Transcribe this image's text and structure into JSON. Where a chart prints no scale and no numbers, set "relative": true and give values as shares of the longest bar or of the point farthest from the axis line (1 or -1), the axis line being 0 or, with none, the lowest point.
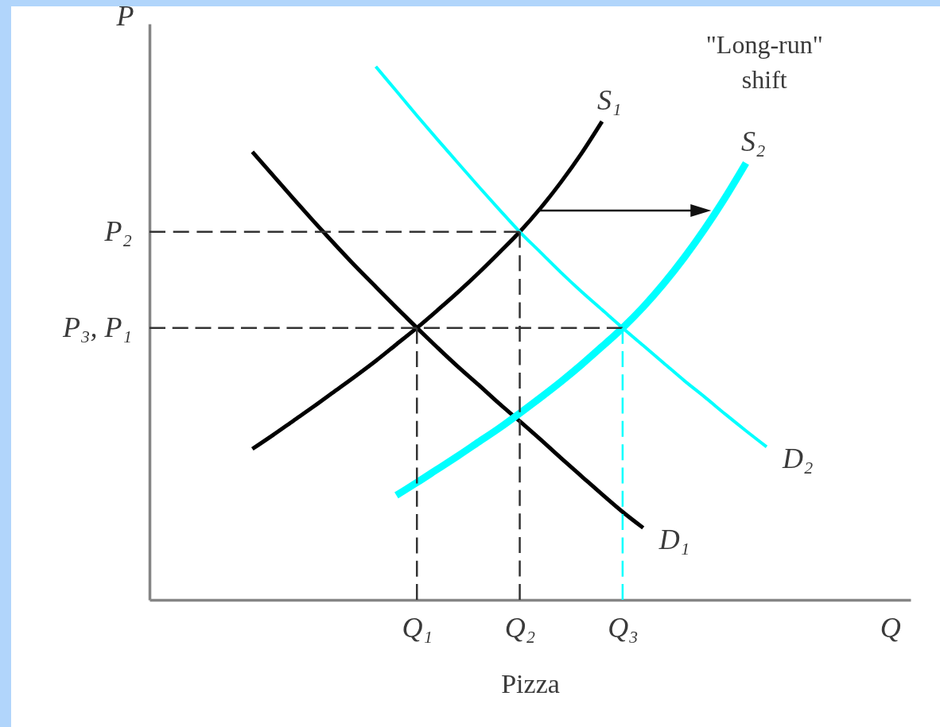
{
  "chart_data": {
    "type": "line",
    "relative": true,
    "xlabel": "Pizza",
    "ylabel": "P",
    "line_style": "solid",
    "categories": [
      null,
      null,
      null,
      null,
      null,
      null,
      null,
      null,
      null,
      null,
      null,
      null,
      null,
      "Q₁",
      null,
      null,
      null,
      null,
      "Q₂",
      null,
      null,
      null,
      null,
      "Q₃",
      null,
      null,
      null,
      null,
      null,
      null,
      null,
      null,
      null,
      null,
      null,
      null,
      "Q",
      null
    ],
    "annotations": [
      "\"Long-run\" shift"
    ],
    "series": [
      {
        "name": "S₁",
        "color": "#000000",
        "values": [
          null,
          null,
          null,
          null,
          null,
          0.283,
          0.309,
          0.336,
          0.363,
          0.391,
          0.419,
          0.448,
          0.479,
          0.51,
          0.543,
          0.577,
          0.613,
          0.651,
          0.69,
          0.734,
          0.783,
          0.837,
          0.897,
          null,
          null,
          null,
          null,
          null,
          null,
          null,
          null,
          null,
          null,
          null,
          null,
          null,
          null,
          null
        ]
      },
      {
        "name": "D₁",
        "color": "#000000",
        "values": [
          null,
          null,
          null,
          null,
          null,
          0.84,
          0.796,
          0.752,
          0.709,
          0.667,
          0.626,
          0.587,
          0.548,
          0.51,
          0.473,
          0.437,
          0.403,
          0.368,
          0.335,
          0.301,
          0.266,
          0.232,
          0.198,
          0.165,
          0.135,
          null,
          null,
          null,
          null,
          null,
          null,
          null,
          null,
          null,
          null,
          null,
          null,
          null
        ]
      },
      {
        "name": "D₂",
        "color": "#00ffff",
        "values": [
          null,
          null,
          null,
          null,
          null,
          null,
          null,
          null,
          null,
          null,
          null,
          1,
          0.954,
          0.908,
          0.863,
          0.819,
          0.775,
          0.732,
          0.69,
          0.652,
          0.614,
          0.578,
          0.544,
          0.51,
          0.477,
          0.444,
          0.411,
          0.38,
          0.348,
          0.317,
          0.287,
          null,
          null,
          null,
          null,
          null,
          null,
          null
        ]
      },
      {
        "name": "S₂",
        "color": "#00ffff",
        "values": [
          null,
          null,
          null,
          null,
          null,
          null,
          null,
          null,
          null,
          null,
          null,
          null,
          0.196,
          0.22,
          0.245,
          0.27,
          0.296,
          0.322,
          0.35,
          0.379,
          0.409,
          0.441,
          0.475,
          0.51,
          0.549,
          0.593,
          0.642,
          0.696,
          0.755,
          0.819,
          null,
          null,
          null,
          null,
          null,
          null,
          null,
          null
        ]
      },
      {
        "name": "P₂",
        "color": "#333333",
        "line_style": "dashed",
        "values": [
          0.69,
          0.69,
          0.69,
          0.69,
          0.69,
          0.69,
          0.69,
          0.69,
          0.69,
          0.69,
          0.69,
          0.69,
          0.69,
          0.69,
          0.69,
          0.69,
          0.69,
          0.69,
          0.69,
          null,
          null,
          null,
          null,
          null,
          null,
          null,
          null,
          null,
          null,
          null,
          null,
          null,
          null,
          null,
          null,
          null,
          null,
          null
        ]
      },
      {
        "name": "P₃, P₁",
        "color": "#333333",
        "line_style": "dashed",
        "values": [
          0.51,
          0.51,
          0.51,
          0.51,
          0.51,
          0.51,
          0.51,
          0.51,
          0.51,
          0.51,
          0.51,
          0.51,
          0.51,
          0.51,
          0.51,
          0.51,
          0.51,
          0.51,
          0.51,
          0.51,
          0.51,
          0.51,
          0.51,
          0.51,
          null,
          null,
          null,
          null,
          null,
          null,
          null,
          null,
          null,
          null,
          null,
          null,
          null,
          null
        ]
      },
      {
        "color": "#333333",
        "line_style": "dashed",
        "x": [
          "Q₁",
          "Q₁"
        ],
        "values": [
          0.51,
          0
        ]
      },
      {
        "color": "#333333",
        "line_style": "dashed",
        "x": [
          "Q₂",
          "Q₂"
        ],
        "values": [
          0.69,
          0
        ]
      },
      {
        "color": "#00ffff",
        "line_style": "dashed",
        "x": [
          "Q₃",
          "Q₃"
        ],
        "values": [
          0.51,
          0
        ]
      }
    ]
  }
}
